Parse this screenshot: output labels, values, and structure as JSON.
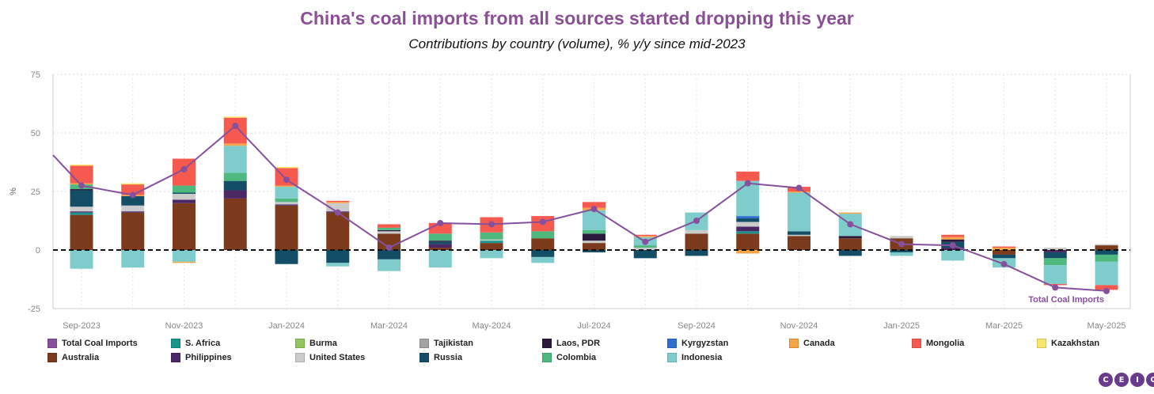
{
  "chart_data": {
    "type": "bar",
    "title": "China's coal imports from all sources started dropping this year",
    "subtitle": "Contributions by country (volume), % y/y since mid-2023",
    "ylabel": "%",
    "ylim": [
      -25,
      75
    ],
    "yticks": [
      -25,
      0,
      25,
      50,
      75
    ],
    "x_tick_labels": [
      "Sep-2023",
      "Nov-2023",
      "Jan-2024",
      "Mar-2024",
      "May-2024",
      "Jul-2024",
      "Sep-2024",
      "Nov-2024",
      "Jan-2025",
      "Mar-2025",
      "May-2025"
    ],
    "grid": true,
    "legend_position": "bottom",
    "line_annotation": "Total Coal Imports",
    "categories": [
      "Sep-2023",
      "Oct-2023",
      "Nov-2023",
      "Dec-2023",
      "Jan-2024",
      "Feb-2024",
      "Mar-2024",
      "Apr-2024",
      "May-2024",
      "Jun-2024",
      "Jul-2024",
      "Aug-2024",
      "Sep-2024",
      "Oct-2024",
      "Nov-2024",
      "Dec-2024",
      "Jan-2025",
      "Feb-2025",
      "Mar-2025",
      "Apr-2025",
      "May-2025"
    ],
    "series": [
      {
        "name": "Total Coal Imports",
        "type": "line",
        "color": "#87509c",
        "values": [
          27.5,
          23.5,
          34.5,
          53,
          30,
          16,
          1,
          11.5,
          11,
          12,
          17.5,
          3.5,
          12.5,
          28.5,
          26.5,
          11,
          2.5,
          2,
          -6,
          -16,
          -17.5
        ]
      },
      {
        "name": "Australia",
        "color": "#7b3b1c",
        "values": [
          15,
          16,
          20,
          22,
          19,
          16,
          7,
          1,
          3,
          5,
          3,
          0,
          7,
          7,
          6,
          5,
          5,
          0,
          -2,
          0,
          2
        ]
      },
      {
        "name": "S. Africa",
        "color": "#18968b",
        "values": [
          1,
          0,
          0,
          0,
          0,
          0,
          0,
          0,
          1,
          0,
          0,
          0,
          0,
          1,
          0,
          0,
          0,
          0,
          0,
          0,
          0
        ]
      },
      {
        "name": "Philippines",
        "color": "#4b2766",
        "values": [
          0.5,
          0.5,
          1.5,
          3.5,
          0.5,
          0.5,
          0,
          1.5,
          0,
          0,
          0,
          0,
          0,
          2,
          0,
          0,
          0,
          1,
          0,
          -1,
          0
        ]
      },
      {
        "name": "Burma",
        "color": "#90c65d",
        "values": [
          0,
          0,
          0,
          0,
          0,
          0,
          0,
          0,
          0,
          0,
          0,
          0,
          0,
          0,
          0,
          0,
          0,
          0,
          0,
          0,
          0
        ]
      },
      {
        "name": "United States",
        "color": "#cbcbcb",
        "values": [
          2,
          2.5,
          2.5,
          0,
          1,
          3.5,
          1,
          0,
          0.5,
          0,
          1,
          1,
          1.5,
          2,
          0.5,
          0,
          1,
          0,
          0,
          1,
          0.5
        ]
      },
      {
        "name": "Tajikistan",
        "color": "#a3a3a3",
        "values": [
          0,
          0,
          0,
          0,
          0,
          0,
          0,
          0,
          0,
          0,
          0,
          0,
          0,
          0,
          0,
          0,
          0,
          0,
          0,
          0,
          0
        ]
      },
      {
        "name": "Russia",
        "color": "#134e66",
        "values": [
          7,
          4,
          0.5,
          4,
          -6,
          -5.5,
          -4,
          1,
          0,
          -3,
          -1,
          -3.5,
          -2.5,
          1.5,
          1.5,
          -2.5,
          -1,
          2.5,
          -1.5,
          -2.5,
          -2
        ]
      },
      {
        "name": "Laos, PDR",
        "color": "#2c1a3d",
        "values": [
          0.5,
          0,
          0,
          0,
          0,
          0,
          0.5,
          0.5,
          0,
          0,
          3,
          0,
          0,
          0,
          0,
          1,
          0,
          1,
          0,
          0,
          0
        ]
      },
      {
        "name": "Colombia",
        "color": "#4fb87f",
        "values": [
          2,
          0,
          3,
          3.5,
          1.5,
          0,
          1,
          3,
          3,
          3,
          1.5,
          1,
          0,
          0,
          0,
          0,
          0,
          0,
          0,
          -3,
          -3
        ]
      },
      {
        "name": "Kyrgyzstan",
        "color": "#2f6fd1",
        "values": [
          0,
          0,
          0,
          0,
          0,
          0,
          0,
          0,
          0,
          0,
          0,
          0,
          0,
          1,
          0,
          0,
          0,
          0,
          0,
          0,
          0
        ]
      },
      {
        "name": "Indonesia",
        "color": "#7ecccb",
        "values": [
          -8,
          -7.5,
          -5,
          11.5,
          5,
          -1.5,
          -5,
          -7.5,
          -3.5,
          -2.5,
          8.5,
          3.5,
          7.5,
          15,
          16.5,
          9.5,
          -1.5,
          -4.5,
          -4,
          -8,
          -10
        ]
      },
      {
        "name": "Canada",
        "color": "#f7a448",
        "values": [
          0.5,
          0.5,
          -0.5,
          1,
          0.5,
          0.5,
          0,
          0,
          0,
          0,
          1,
          0.5,
          0,
          -1.5,
          0.5,
          0.5,
          0,
          1,
          1,
          0,
          0
        ]
      },
      {
        "name": "Mongolia",
        "color": "#f65a4f",
        "values": [
          7.5,
          4.5,
          11.5,
          11,
          7.5,
          0.5,
          1.5,
          4.5,
          6.5,
          6.5,
          2.5,
          0.5,
          0,
          4,
          2,
          0,
          0,
          1,
          0.5,
          -0.5,
          -2
        ]
      },
      {
        "name": "Kazakhstan",
        "color": "#f8e66b",
        "values": [
          0.5,
          0.5,
          0,
          0.5,
          0.5,
          0,
          0,
          0,
          0,
          0,
          0,
          0,
          0,
          0,
          0,
          0,
          0,
          0,
          0,
          0,
          0
        ]
      }
    ]
  },
  "legend": [
    {
      "label": "Total Coal Imports",
      "color": "#87509c"
    },
    {
      "label": "S. Africa",
      "color": "#18968b"
    },
    {
      "label": "Burma",
      "color": "#90c65d"
    },
    {
      "label": "Tajikistan",
      "color": "#a3a3a3"
    },
    {
      "label": "Laos, PDR",
      "color": "#2c1a3d"
    },
    {
      "label": "Kyrgyzstan",
      "color": "#2f6fd1"
    },
    {
      "label": "Canada",
      "color": "#f7a448"
    },
    {
      "label": "Mongolia",
      "color": "#f65a4f"
    },
    {
      "label": "Kazakhstan",
      "color": "#f8e66b"
    },
    {
      "label": "Australia",
      "color": "#7b3b1c"
    },
    {
      "label": "Philippines",
      "color": "#4b2766"
    },
    {
      "label": "United States",
      "color": "#cbcbcb"
    },
    {
      "label": "Russia",
      "color": "#134e66"
    },
    {
      "label": "Colombia",
      "color": "#4fb87f"
    },
    {
      "label": "Indonesia",
      "color": "#7ecccb"
    }
  ],
  "brand": {
    "letters": [
      "C",
      "E",
      "I",
      "C"
    ]
  }
}
